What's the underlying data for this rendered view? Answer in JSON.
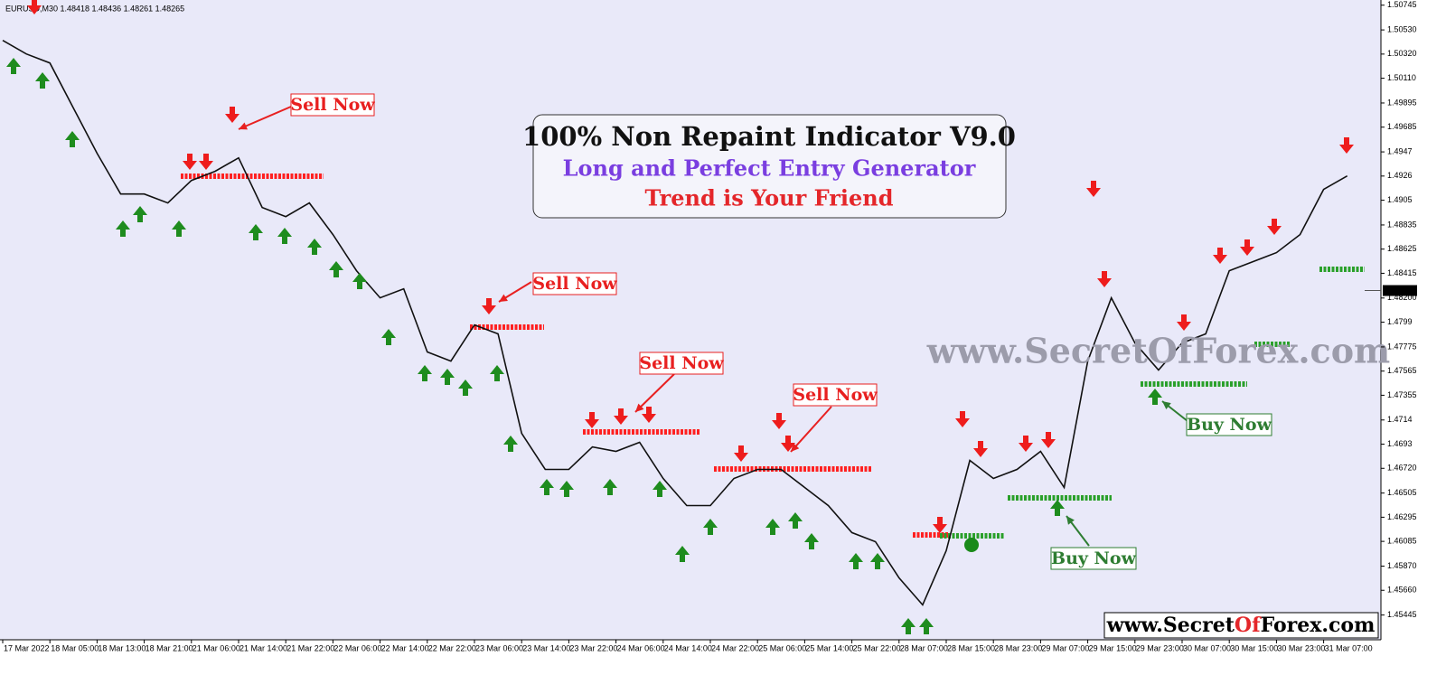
{
  "header": "EURUSD,M30  1.48418 1.48436 1.48261 1.48265",
  "chart_data": {
    "type": "line",
    "categories": [
      "17 Mar 2022",
      null,
      "18 Mar 05:00",
      null,
      "18 Mar 13:00",
      null,
      "18 Mar 21:00",
      null,
      "21 Mar 06:00",
      null,
      "21 Mar 14:00",
      null,
      "21 Mar 22:00",
      null,
      "22 Mar 06:00",
      null,
      "22 Mar 14:00",
      null,
      "22 Mar 22:00",
      null,
      "23 Mar 06:00",
      null,
      "23 Mar 14:00",
      null,
      "23 Mar 22:00",
      null,
      "24 Mar 06:00",
      null,
      "24 Mar 14:00",
      null,
      "24 Mar 22:00",
      null,
      "25 Mar 06:00",
      null,
      "25 Mar 14:00",
      null,
      "25 Mar 22:00",
      null,
      "28 Mar 07:00",
      null,
      "28 Mar 15:00",
      null,
      "28 Mar 23:00",
      null,
      "29 Mar 07:00",
      null,
      "29 Mar 15:00",
      null,
      "29 Mar 23:00",
      null,
      "30 Mar 07:00",
      null,
      "30 Mar 15:00",
      null,
      "30 Mar 23:00",
      null,
      "31 Mar 07:00",
      null
    ],
    "series": [
      {
        "name": "EURUSD",
        "color": "#111111",
        "values": [
          1.50439,
          1.50321,
          1.50243,
          1.4985,
          1.49458,
          1.49104,
          1.49104,
          1.49026,
          1.49222,
          1.49301,
          1.49418,
          1.48987,
          1.48908,
          1.49026,
          1.48751,
          1.48437,
          1.48202,
          1.4828,
          1.47731,
          1.47652,
          1.47966,
          1.47888,
          1.47024,
          1.4671,
          1.4671,
          1.46906,
          1.46867,
          1.46946,
          1.46632,
          1.46396,
          1.46396,
          1.46632,
          1.4671,
          1.4671,
          1.46553,
          1.46396,
          1.46161,
          1.46082,
          1.45768,
          1.45533,
          1.46004,
          1.46789,
          1.46632,
          1.4671,
          1.46867,
          1.46553,
          1.47652,
          1.48202,
          1.47809,
          1.47574,
          1.47809,
          1.47888,
          1.48437,
          1.48516,
          1.48594,
          1.48751,
          1.49144,
          1.49261
        ]
      }
    ],
    "ylim": [
      1.4523,
      1.5079
    ],
    "yticks": [
      1.50745,
      {
        "value": 1.5053,
        "label": "1.50530"
      },
      {
        "value": 1.5032,
        "label": "1.50320"
      },
      {
        "value": 1.5011,
        "label": "1.50110"
      },
      1.49895,
      1.49685,
      1.4947,
      1.4926,
      1.4905,
      1.48835,
      1.48625,
      1.48415,
      {
        "value": 1.482,
        "label": "1.48200"
      },
      1.4799,
      1.47775,
      1.47565,
      1.47355,
      1.4714,
      1.4693,
      {
        "value": 1.4672,
        "label": "1.46720"
      },
      1.46505,
      1.46295,
      1.46085,
      {
        "value": 1.4587,
        "label": "1.45870"
      },
      {
        "value": 1.4566,
        "label": "1.45660"
      },
      1.45445
    ],
    "current_price": 1.48265,
    "title_lines": [
      "100% Non Repaint Indicator V9.0",
      "Long and Perfect Entry Generator",
      "Trend is Your Friend"
    ],
    "annotations": [
      "Sell Now",
      "Sell Now",
      "Sell Now",
      "Sell Now",
      "Buy Now",
      "Buy Now"
    ],
    "watermark": "www.SecretOfForex.com",
    "site_label": [
      "www.Secret",
      "Of",
      "Forex.com"
    ]
  }
}
